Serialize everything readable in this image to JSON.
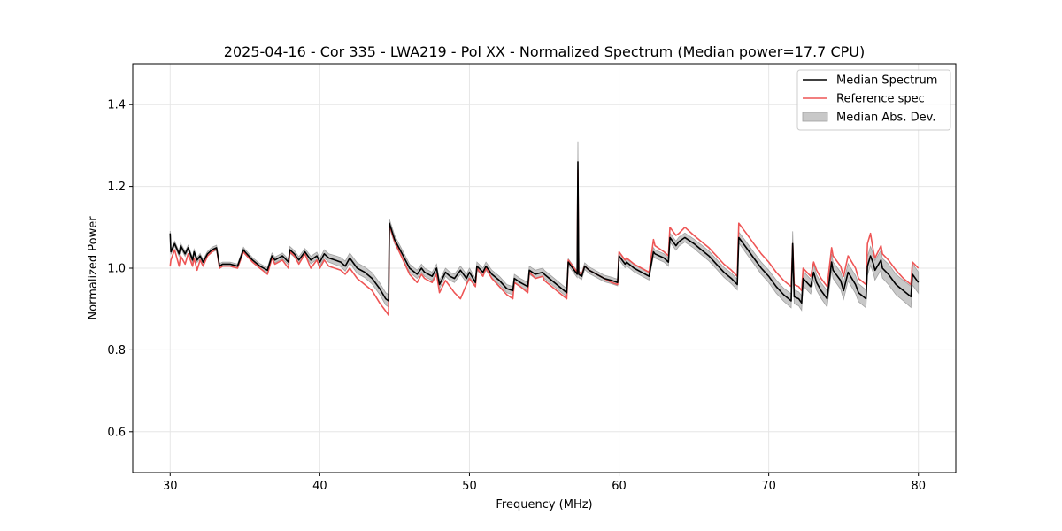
{
  "chart_data": {
    "type": "line",
    "title": "2025-04-16 - Cor 335 - LWA219 - Pol XX - Normalized Spectrum (Median power=17.7 CPU)",
    "xlabel": "Frequency (MHz)",
    "ylabel": "Normalized Power",
    "xlim": [
      27.5,
      82.5
    ],
    "ylim": [
      0.5,
      1.5
    ],
    "xticks": [
      30,
      40,
      50,
      60,
      70,
      80
    ],
    "yticks": [
      0.6,
      0.8,
      1.0,
      1.2,
      1.4
    ],
    "xtick_labels": [
      "30",
      "40",
      "50",
      "60",
      "70",
      "80"
    ],
    "ytick_labels": [
      "0.6",
      "0.8",
      "1.0",
      "1.2",
      "1.4"
    ],
    "grid": true,
    "legend_position": "top-right",
    "legend": [
      "Median Spectrum",
      "Reference spec",
      "Median Abs. Dev."
    ],
    "colors": {
      "median": "#000000",
      "reference": "#ee5555",
      "mad_fill": "#c8c8c8",
      "mad_edge": "#a0a0a0",
      "grid": "#e6e6e6"
    },
    "series": [
      {
        "name": "Median Spectrum",
        "x": [
          30.0,
          30.05,
          30.3,
          30.6,
          30.7,
          31.0,
          31.2,
          31.5,
          31.6,
          31.8,
          32.0,
          32.2,
          32.5,
          32.8,
          33.1,
          33.3,
          33.5,
          34.0,
          34.5,
          34.9,
          35.0,
          35.5,
          36.0,
          36.5,
          36.8,
          37.0,
          37.5,
          37.9,
          38.0,
          38.3,
          38.6,
          39.0,
          39.4,
          39.8,
          40.0,
          40.3,
          40.6,
          41.0,
          41.4,
          41.7,
          42.0,
          42.5,
          43.0,
          43.5,
          44.0,
          44.4,
          44.6,
          44.65,
          45.0,
          45.5,
          46.0,
          46.5,
          46.8,
          47.0,
          47.5,
          47.8,
          48.0,
          48.4,
          48.7,
          49.0,
          49.4,
          49.8,
          50.0,
          50.4,
          50.5,
          50.9,
          51.1,
          51.5,
          52.0,
          52.5,
          52.9,
          53.0,
          53.4,
          53.9,
          54.0,
          54.4,
          54.9,
          55.0,
          55.5,
          56.0,
          56.5,
          56.6,
          57.0,
          57.2,
          57.25,
          57.3,
          57.5,
          57.7,
          58.0,
          58.5,
          59.0,
          59.5,
          59.9,
          60.0,
          60.4,
          60.5,
          61.0,
          61.5,
          62.0,
          62.3,
          62.4,
          63.0,
          63.3,
          63.4,
          63.8,
          64.0,
          64.4,
          65.0,
          65.5,
          66.0,
          66.5,
          67.0,
          67.5,
          67.9,
          68.0,
          68.5,
          69.0,
          69.5,
          70.0,
          70.5,
          71.0,
          71.5,
          71.6,
          71.7,
          72.0,
          72.2,
          72.3,
          72.8,
          73.0,
          73.2,
          73.5,
          73.9,
          74.2,
          74.3,
          74.8,
          75.0,
          75.3,
          75.8,
          76.0,
          76.5,
          76.6,
          76.8,
          77.0,
          77.1,
          77.5,
          77.6,
          78.0,
          78.5,
          79.0,
          79.5,
          79.6,
          80.0
        ],
        "y": [
          1.085,
          1.04,
          1.06,
          1.035,
          1.055,
          1.035,
          1.05,
          1.02,
          1.04,
          1.02,
          1.03,
          1.015,
          1.035,
          1.045,
          1.05,
          1.005,
          1.01,
          1.01,
          1.005,
          1.045,
          1.04,
          1.02,
          1.005,
          0.995,
          1.03,
          1.02,
          1.03,
          1.015,
          1.045,
          1.035,
          1.02,
          1.04,
          1.02,
          1.03,
          1.015,
          1.035,
          1.025,
          1.02,
          1.015,
          1.005,
          1.025,
          1.0,
          0.99,
          0.975,
          0.95,
          0.925,
          0.92,
          1.11,
          1.07,
          1.035,
          1.0,
          0.985,
          1.0,
          0.99,
          0.98,
          1.0,
          0.96,
          0.99,
          0.98,
          0.975,
          0.995,
          0.975,
          0.99,
          0.965,
          1.005,
          0.99,
          1.005,
          0.985,
          0.97,
          0.95,
          0.945,
          0.975,
          0.965,
          0.955,
          0.995,
          0.985,
          0.99,
          0.985,
          0.97,
          0.955,
          0.94,
          1.015,
          0.995,
          0.985,
          1.26,
          0.985,
          0.98,
          1.005,
          0.995,
          0.985,
          0.975,
          0.97,
          0.965,
          1.03,
          1.01,
          1.015,
          1.0,
          0.99,
          0.98,
          1.04,
          1.035,
          1.025,
          1.015,
          1.075,
          1.055,
          1.065,
          1.075,
          1.06,
          1.045,
          1.03,
          1.01,
          0.99,
          0.975,
          0.96,
          1.075,
          1.05,
          1.025,
          1.0,
          0.98,
          0.955,
          0.935,
          0.92,
          1.06,
          0.93,
          0.925,
          0.915,
          0.975,
          0.955,
          0.99,
          0.965,
          0.945,
          0.925,
          1.015,
          0.995,
          0.97,
          0.945,
          0.99,
          0.96,
          0.94,
          0.925,
          1.005,
          1.03,
          1.01,
          0.995,
          1.02,
          1.0,
          0.985,
          0.96,
          0.945,
          0.93,
          0.985,
          0.965
        ]
      },
      {
        "name": "Reference spec",
        "x": [
          30.0,
          30.05,
          30.3,
          30.6,
          30.7,
          31.0,
          31.2,
          31.5,
          31.6,
          31.8,
          32.0,
          32.2,
          32.5,
          32.8,
          33.1,
          33.3,
          33.5,
          34.0,
          34.5,
          34.9,
          35.0,
          35.5,
          36.0,
          36.5,
          36.8,
          37.0,
          37.5,
          37.9,
          38.0,
          38.3,
          38.6,
          39.0,
          39.4,
          39.8,
          40.0,
          40.3,
          40.6,
          41.0,
          41.4,
          41.7,
          42.0,
          42.5,
          43.0,
          43.5,
          44.0,
          44.4,
          44.6,
          44.65,
          45.0,
          45.5,
          46.0,
          46.5,
          46.8,
          47.0,
          47.5,
          47.8,
          48.0,
          48.4,
          48.7,
          49.0,
          49.4,
          49.8,
          50.0,
          50.4,
          50.5,
          50.9,
          51.1,
          51.5,
          52.0,
          52.5,
          52.9,
          53.0,
          53.4,
          53.9,
          54.0,
          54.4,
          54.9,
          55.0,
          55.5,
          56.0,
          56.5,
          56.6,
          57.0,
          57.2,
          57.25,
          57.3,
          57.5,
          57.7,
          58.0,
          58.5,
          59.0,
          59.5,
          59.9,
          60.0,
          60.4,
          60.5,
          61.0,
          61.5,
          62.0,
          62.3,
          62.4,
          63.0,
          63.3,
          63.4,
          63.8,
          64.0,
          64.4,
          65.0,
          65.5,
          66.0,
          66.5,
          67.0,
          67.5,
          67.9,
          68.0,
          68.5,
          69.0,
          69.5,
          70.0,
          70.5,
          71.0,
          71.5,
          71.6,
          71.7,
          72.0,
          72.2,
          72.3,
          72.8,
          73.0,
          73.2,
          73.5,
          73.9,
          74.2,
          74.3,
          74.8,
          75.0,
          75.3,
          75.8,
          76.0,
          76.5,
          76.6,
          76.8,
          77.0,
          77.1,
          77.5,
          77.6,
          78.0,
          78.5,
          79.0,
          79.5,
          79.6,
          80.0
        ],
        "y": [
          1.005,
          1.02,
          1.045,
          1.005,
          1.03,
          1.01,
          1.035,
          1.005,
          1.025,
          0.995,
          1.02,
          1.005,
          1.03,
          1.04,
          1.048,
          1.0,
          1.005,
          1.005,
          1.0,
          1.04,
          1.035,
          1.015,
          1.0,
          0.985,
          1.025,
          1.01,
          1.02,
          1.0,
          1.04,
          1.03,
          1.01,
          1.035,
          1.0,
          1.02,
          1.0,
          1.02,
          1.005,
          1.0,
          0.995,
          0.985,
          1.0,
          0.975,
          0.96,
          0.945,
          0.915,
          0.895,
          0.885,
          1.105,
          1.065,
          1.025,
          0.985,
          0.965,
          0.985,
          0.975,
          0.965,
          0.985,
          0.94,
          0.97,
          0.955,
          0.94,
          0.925,
          0.96,
          0.975,
          0.955,
          1.0,
          0.98,
          1.0,
          0.975,
          0.955,
          0.935,
          0.925,
          0.965,
          0.955,
          0.94,
          0.99,
          0.975,
          0.98,
          0.97,
          0.955,
          0.94,
          0.925,
          1.02,
          1.0,
          0.99,
          1.24,
          0.99,
          0.985,
          1.005,
          0.995,
          0.985,
          0.975,
          0.965,
          0.96,
          1.04,
          1.02,
          1.025,
          1.01,
          1.0,
          0.99,
          1.07,
          1.055,
          1.04,
          1.03,
          1.1,
          1.08,
          1.085,
          1.1,
          1.08,
          1.065,
          1.05,
          1.03,
          1.01,
          0.995,
          0.98,
          1.11,
          1.085,
          1.06,
          1.035,
          1.015,
          0.99,
          0.97,
          0.955,
          1.06,
          0.96,
          0.955,
          0.945,
          1.0,
          0.98,
          1.015,
          0.995,
          0.975,
          0.955,
          1.05,
          1.03,
          1.005,
          0.98,
          1.03,
          1.0,
          0.975,
          0.96,
          1.06,
          1.085,
          1.04,
          1.025,
          1.055,
          1.035,
          1.02,
          0.995,
          0.975,
          0.96,
          1.015,
          1.0
        ]
      },
      {
        "name": "Median Abs. Dev.",
        "spread": [
          0.006,
          0.006,
          0.006,
          0.006,
          0.006,
          0.006,
          0.006,
          0.006,
          0.006,
          0.006,
          0.006,
          0.006,
          0.006,
          0.006,
          0.006,
          0.006,
          0.005,
          0.005,
          0.005,
          0.006,
          0.006,
          0.006,
          0.006,
          0.006,
          0.007,
          0.007,
          0.007,
          0.007,
          0.008,
          0.008,
          0.008,
          0.008,
          0.009,
          0.009,
          0.009,
          0.01,
          0.01,
          0.011,
          0.011,
          0.012,
          0.012,
          0.013,
          0.013,
          0.014,
          0.014,
          0.015,
          0.015,
          0.01,
          0.01,
          0.01,
          0.01,
          0.01,
          0.01,
          0.01,
          0.01,
          0.01,
          0.01,
          0.01,
          0.01,
          0.01,
          0.01,
          0.01,
          0.01,
          0.01,
          0.01,
          0.01,
          0.01,
          0.01,
          0.01,
          0.01,
          0.01,
          0.01,
          0.01,
          0.01,
          0.01,
          0.01,
          0.01,
          0.01,
          0.01,
          0.01,
          0.01,
          0.008,
          0.008,
          0.008,
          0.05,
          0.008,
          0.008,
          0.008,
          0.008,
          0.008,
          0.008,
          0.008,
          0.008,
          0.009,
          0.009,
          0.009,
          0.009,
          0.009,
          0.009,
          0.01,
          0.01,
          0.01,
          0.01,
          0.011,
          0.011,
          0.011,
          0.011,
          0.011,
          0.012,
          0.012,
          0.012,
          0.012,
          0.013,
          0.013,
          0.013,
          0.014,
          0.014,
          0.015,
          0.015,
          0.016,
          0.016,
          0.017,
          0.03,
          0.017,
          0.017,
          0.018,
          0.018,
          0.018,
          0.019,
          0.019,
          0.019,
          0.02,
          0.02,
          0.02,
          0.021,
          0.021,
          0.021,
          0.022,
          0.022,
          0.022,
          0.023,
          0.023,
          0.023,
          0.024,
          0.024,
          0.024,
          0.025,
          0.025,
          0.025,
          0.026,
          0.026,
          0.026
        ]
      }
    ]
  }
}
